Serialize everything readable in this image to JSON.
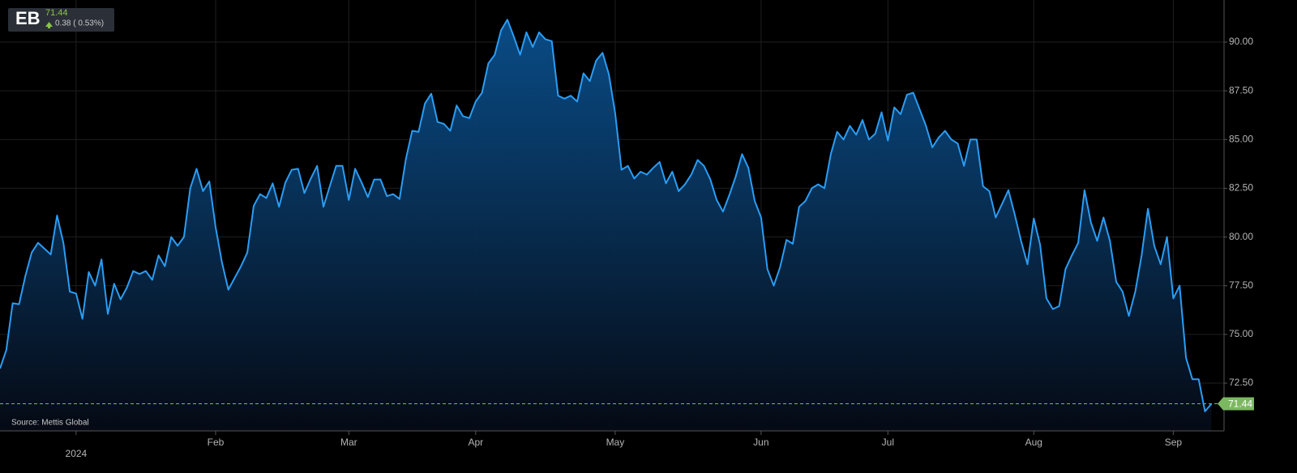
{
  "chart_data": {
    "type": "line",
    "symbol": "EB",
    "last": 71.44,
    "change": "0.38 ( 0.53%)",
    "source": "Source: Mettis Global",
    "series": [
      {
        "name": "EB",
        "color": "#2a9df4",
        "values": [
          73.25,
          74.2,
          76.6,
          76.55,
          78.0,
          79.2,
          79.7,
          79.4,
          79.1,
          81.1,
          79.7,
          77.2,
          77.1,
          75.8,
          78.2,
          77.5,
          78.85,
          76.05,
          77.6,
          76.8,
          77.4,
          78.25,
          78.1,
          78.25,
          77.8,
          79.05,
          78.5,
          80.0,
          79.55,
          80.0,
          82.5,
          83.5,
          82.35,
          82.85,
          80.5,
          78.7,
          77.3,
          77.9,
          78.5,
          79.2,
          81.6,
          82.2,
          82.0,
          82.75,
          81.55,
          82.8,
          83.45,
          83.5,
          82.25,
          83.0,
          83.65,
          81.55,
          82.6,
          83.65,
          83.65,
          81.9,
          83.5,
          82.8,
          82.05,
          82.95,
          82.95,
          82.1,
          82.2,
          81.95,
          84.0,
          85.45,
          85.4,
          86.85,
          87.35,
          85.9,
          85.8,
          85.45,
          86.75,
          86.2,
          86.1,
          86.95,
          87.4,
          88.9,
          89.35,
          90.6,
          91.15,
          90.3,
          89.35,
          90.5,
          89.75,
          90.5,
          90.15,
          90.05,
          87.25,
          87.1,
          87.25,
          86.95,
          88.4,
          88.0,
          89.05,
          89.45,
          88.35,
          86.35,
          83.45,
          83.65,
          83.0,
          83.35,
          83.2,
          83.55,
          83.85,
          82.75,
          83.35,
          82.35,
          82.7,
          83.2,
          83.95,
          83.65,
          82.95,
          81.9,
          81.3,
          82.15,
          83.1,
          84.25,
          83.55,
          81.85,
          81.0,
          78.35,
          77.5,
          78.45,
          79.85,
          79.65,
          81.55,
          81.85,
          82.5,
          82.7,
          82.5,
          84.25,
          85.4,
          85.0,
          85.7,
          85.25,
          86.0,
          85.0,
          85.3,
          86.4,
          84.95,
          86.65,
          86.3,
          87.3,
          87.4,
          86.55,
          85.7,
          84.6,
          85.1,
          85.45,
          85.0,
          84.8,
          83.65,
          85.0,
          85.0,
          82.6,
          82.35,
          81.0,
          81.7,
          82.4,
          81.15,
          79.8,
          78.6,
          80.95,
          79.6,
          76.85,
          76.3,
          76.45,
          78.35,
          79.05,
          79.7,
          82.4,
          80.75,
          79.8,
          81.0,
          79.8,
          77.7,
          77.2,
          75.95,
          77.2,
          79.05,
          81.45,
          79.55,
          78.6,
          80.0,
          76.85,
          77.5,
          73.8,
          72.7,
          72.7,
          71.05,
          71.44
        ]
      }
    ],
    "last_color": "#7cb860",
    "xlim": [
      0,
      193
    ],
    "xticks": [
      {
        "value": 12,
        "label": "2024"
      },
      {
        "value": 34,
        "label": "Feb"
      },
      {
        "value": 55,
        "label": "Mar"
      },
      {
        "value": 75,
        "label": "Apr"
      },
      {
        "value": 97,
        "label": "May"
      },
      {
        "value": 120,
        "label": "Jun"
      },
      {
        "value": 140,
        "label": "Jul"
      },
      {
        "value": 163,
        "label": "Aug"
      },
      {
        "value": 185,
        "label": "Sep"
      }
    ],
    "ylim": [
      70.05,
      92.16
    ],
    "yticks": [
      {
        "value": 72.5,
        "label": "72.50"
      },
      {
        "value": 75,
        "label": "75.00"
      },
      {
        "value": 77.5,
        "label": "77.50"
      },
      {
        "value": 80,
        "label": "80.00"
      },
      {
        "value": 82.5,
        "label": "82.50"
      },
      {
        "value": 85,
        "label": "85.00"
      },
      {
        "value": 87.5,
        "label": "87.50"
      },
      {
        "value": 90,
        "label": "90.00"
      }
    ],
    "grid": true
  }
}
